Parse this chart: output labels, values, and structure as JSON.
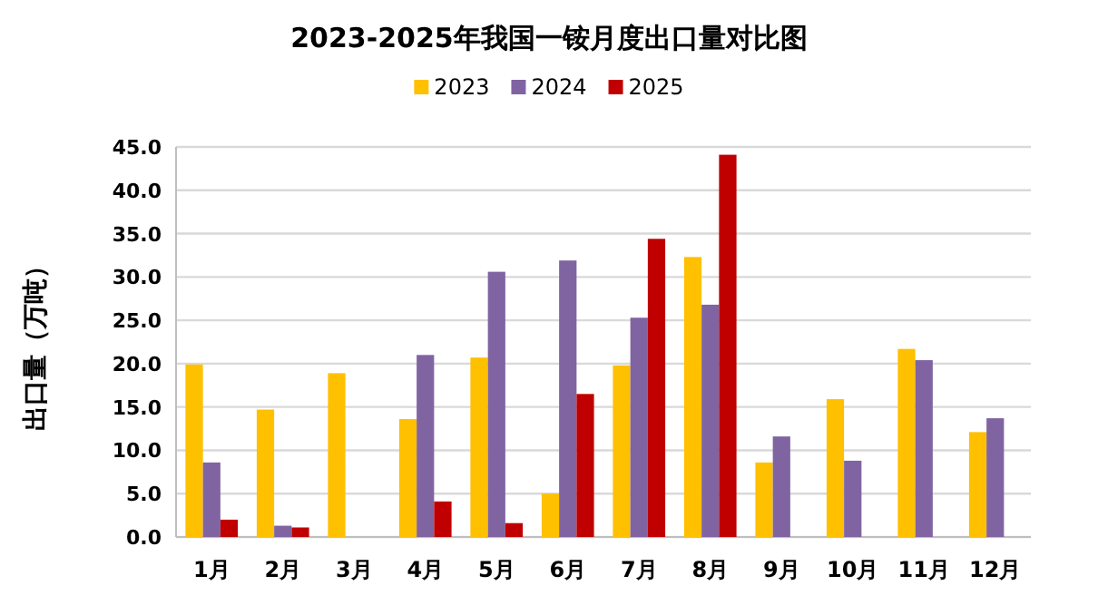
{
  "chart_data": {
    "type": "bar",
    "title": "2023-2025年我国一铵月度出口量对比图",
    "ylabel": "出口量（万吨）",
    "categories": [
      "1月",
      "2月",
      "3月",
      "4月",
      "5月",
      "6月",
      "7月",
      "8月",
      "9月",
      "10月",
      "11月",
      "12月"
    ],
    "series": [
      {
        "name": "2023",
        "color": "#ffc000",
        "values": [
          19.9,
          14.7,
          18.9,
          13.6,
          20.7,
          5.0,
          19.8,
          32.3,
          8.6,
          15.9,
          21.7,
          12.1
        ]
      },
      {
        "name": "2024",
        "color": "#8064a2",
        "values": [
          8.6,
          1.3,
          null,
          21.0,
          30.6,
          31.9,
          25.3,
          26.8,
          11.6,
          8.8,
          20.4,
          13.7
        ]
      },
      {
        "name": "2025",
        "color": "#c00000",
        "values": [
          2.0,
          1.1,
          null,
          4.1,
          1.6,
          16.5,
          34.4,
          44.1,
          null,
          null,
          null,
          null
        ]
      }
    ],
    "ylim": [
      0,
      45
    ],
    "yticks": [
      {
        "value": 0,
        "label": "0.0"
      },
      {
        "value": 5,
        "label": "5.0"
      },
      {
        "value": 10,
        "label": "10.0"
      },
      {
        "value": 15,
        "label": "15.0"
      },
      {
        "value": 20,
        "label": "20.0"
      },
      {
        "value": 25,
        "label": "25.0"
      },
      {
        "value": 30,
        "label": "30.0"
      },
      {
        "value": 35,
        "label": "35.0"
      },
      {
        "value": 40,
        "label": "40.0"
      },
      {
        "value": 45,
        "label": "45.0"
      }
    ],
    "grid": "y",
    "legend": "top"
  }
}
